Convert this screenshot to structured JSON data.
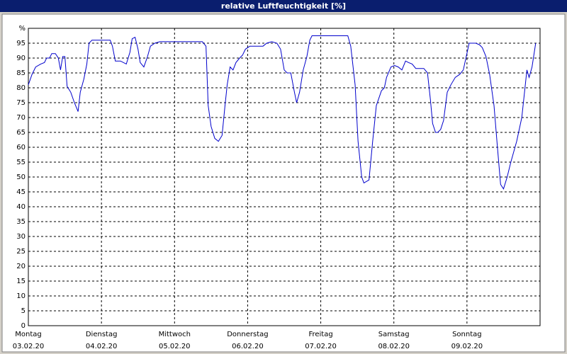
{
  "chart_data": {
    "type": "line",
    "title": "relative Luftfeuchtigkeit [%]",
    "color": "#0000cc",
    "grid": true,
    "xlim": [
      0,
      7
    ],
    "xticks": [
      {
        "value": 0,
        "label": "Montag",
        "date": "03.02.20"
      },
      {
        "value": 1,
        "label": "Dienstag",
        "date": "04.02.20"
      },
      {
        "value": 2,
        "label": "Mittwoch",
        "date": "05.02.20"
      },
      {
        "value": 3,
        "label": "Donnerstag",
        "date": "06.02.20"
      },
      {
        "value": 4,
        "label": "Freitag",
        "date": "07.02.20"
      },
      {
        "value": 5,
        "label": "Samstag",
        "date": "08.02.20"
      },
      {
        "value": 6,
        "label": "Sonntag",
        "date": "09.02.20"
      }
    ],
    "ylim": [
      0,
      100
    ],
    "yticks": [
      0,
      5,
      10,
      15,
      20,
      25,
      30,
      35,
      40,
      45,
      50,
      55,
      60,
      65,
      70,
      75,
      80,
      85,
      90,
      95,
      {
        "value": 100,
        "label": "%"
      }
    ],
    "x": [
      0,
      0.05,
      0.1,
      0.17,
      0.22,
      0.25,
      0.29,
      0.32,
      0.37,
      0.41,
      0.44,
      0.47,
      0.5,
      0.53,
      0.58,
      0.63,
      0.68,
      0.71,
      0.76,
      0.8,
      0.83,
      0.87,
      1.12,
      1.15,
      1.19,
      1.26,
      1.34,
      1.39,
      1.42,
      1.46,
      1.5,
      1.53,
      1.58,
      1.63,
      1.67,
      1.73,
      1.8,
      2.38,
      2.43,
      2.46,
      2.5,
      2.55,
      2.6,
      2.65,
      2.69,
      2.72,
      2.76,
      2.8,
      2.84,
      2.89,
      2.93,
      2.97,
      3.03,
      3.21,
      3.26,
      3.33,
      3.4,
      3.45,
      3.5,
      3.54,
      3.59,
      3.64,
      3.67,
      3.71,
      3.76,
      3.81,
      3.85,
      3.88,
      4.37,
      4.41,
      4.47,
      4.51,
      4.56,
      4.59,
      4.66,
      4.71,
      4.76,
      4.83,
      4.87,
      4.9,
      4.96,
      5.01,
      5.06,
      5.11,
      5.16,
      5.2,
      5.25,
      5.3,
      5.36,
      5.41,
      5.46,
      5.5,
      5.53,
      5.57,
      5.6,
      5.64,
      5.68,
      5.73,
      5.78,
      5.84,
      5.9,
      5.95,
      5.99,
      6.03,
      6.12,
      6.17,
      6.21,
      6.26,
      6.31,
      6.37,
      6.41,
      6.46,
      6.5,
      6.55,
      6.6,
      6.68,
      6.75,
      6.82,
      6.85,
      6.89,
      6.94
    ],
    "values": [
      81,
      84.5,
      87,
      88,
      88.5,
      90,
      90,
      91.5,
      91.5,
      90,
      86,
      90.5,
      90.5,
      80.5,
      78.5,
      75,
      72,
      78.5,
      83,
      88,
      95,
      96,
      96,
      94,
      89,
      89,
      88,
      92,
      96.5,
      97,
      93,
      88.5,
      87,
      90.5,
      94,
      95,
      95.5,
      95.5,
      94,
      74,
      67,
      63,
      62,
      64,
      74,
      81,
      87,
      86,
      88.5,
      90,
      91,
      93,
      94,
      94,
      95,
      95.5,
      95,
      93,
      86,
      85,
      85,
      78.5,
      75,
      78.5,
      86,
      90.5,
      96,
      97.5,
      97.5,
      94,
      81,
      62,
      50,
      48,
      49,
      62,
      74,
      79,
      80,
      83.5,
      87,
      87.5,
      87,
      86,
      89,
      88.5,
      88,
      86.5,
      86.5,
      86.5,
      85,
      76,
      68,
      65,
      65,
      66,
      69,
      78.5,
      81,
      83.5,
      84.5,
      86,
      90.5,
      95,
      95,
      94.5,
      93.5,
      90.5,
      84.5,
      74,
      62,
      47.5,
      46,
      50,
      55,
      62,
      70,
      86,
      83.5,
      87,
      95
    ]
  }
}
